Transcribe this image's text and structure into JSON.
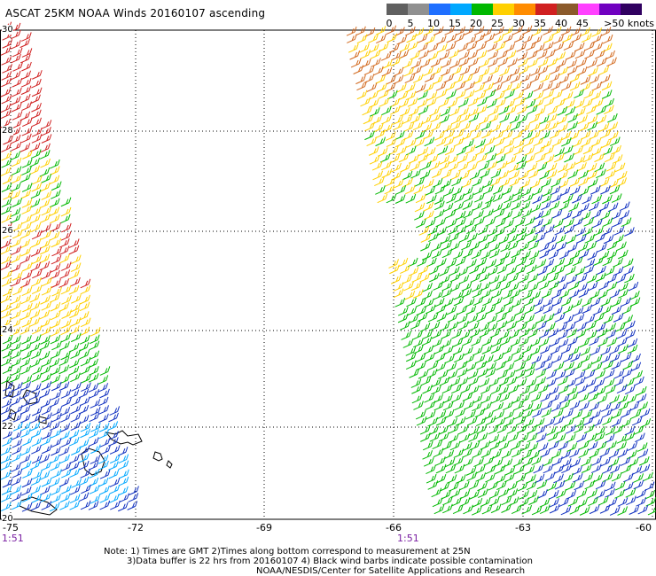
{
  "title": "ASCAT 25KM NOAA Winds 20160107 ascending",
  "legend": {
    "ticks": [
      "0",
      "5",
      "10",
      "15",
      "20",
      "25",
      "30",
      "35",
      "40",
      "45"
    ],
    "unit": ">50 knots",
    "colors": [
      "#606060",
      "#909090",
      "#1f6fff",
      "#00a8ff",
      "#00b800",
      "#ffd000",
      "#ff8c00",
      "#d02020",
      "#8b5a2b",
      "#ff40ff",
      "#7000c0",
      "#300060"
    ]
  },
  "axes": {
    "lat_labels": [
      "30",
      "28",
      "26",
      "24",
      "22",
      "20"
    ],
    "lon_labels": [
      "-75",
      "-72",
      "-69",
      "-66",
      "-63",
      "-60"
    ]
  },
  "passes": {
    "west_time": "1:51",
    "east_time": "1:51"
  },
  "notes": {
    "line1": "Note: 1) Times are GMT 2)Times along bottom correspond to measurement at 25N",
    "line2": "3)Data buffer is 22 hrs from 20160107 4) Black wind barbs indicate possible contamination",
    "line3": "NOAA/NESDIS/Center for Satellite Applications and Research"
  }
}
